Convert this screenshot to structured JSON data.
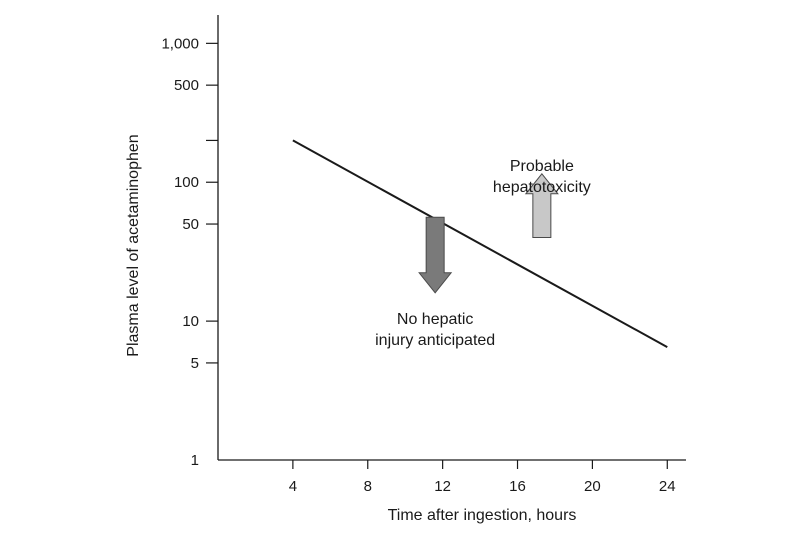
{
  "chart_data": {
    "type": "line",
    "title": "",
    "xlabel": "Time after ingestion, hours",
    "ylabel": "Plasma level of acetaminophen",
    "x_ticks": [
      4,
      8,
      12,
      16,
      20,
      24
    ],
    "x_tick_labels": [
      "4",
      "8",
      "12",
      "16",
      "20",
      "24"
    ],
    "xlim": [
      0,
      25
    ],
    "y_scale": "log",
    "y_labeled_ticks": [
      1,
      5,
      10,
      50,
      100,
      500,
      1000
    ],
    "y_tick_labels": [
      "1",
      "5",
      "10",
      "50",
      "100",
      "500",
      "1,000"
    ],
    "y_minor_ticks": [
      200
    ],
    "ylim": [
      1,
      1600
    ],
    "grid": false,
    "line_color": "#1a1a1a",
    "series": [
      {
        "x": [
          4,
          24
        ],
        "y": [
          200,
          6.5
        ]
      }
    ],
    "annotations": [
      {
        "id": "above",
        "lines": [
          "Probable",
          "hepatotoxicity"
        ],
        "text_x": 17.3,
        "text_y": 120,
        "arrow_direction": "up",
        "arrow_x": 17.3,
        "arrow_y_from": 40,
        "arrow_y_to": 115,
        "arrow_color": "#c8c8c8"
      },
      {
        "id": "below",
        "lines": [
          "No hepatic",
          "injury anticipated"
        ],
        "text_x": 11.6,
        "text_y": 9.5,
        "arrow_direction": "down",
        "arrow_x": 11.6,
        "arrow_y_from": 56,
        "arrow_y_to": 16,
        "arrow_color": "#7a7a7a"
      }
    ]
  }
}
